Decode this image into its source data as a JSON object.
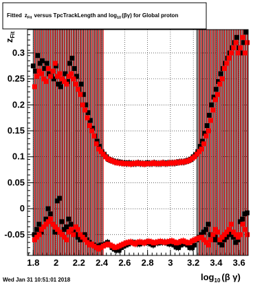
{
  "title": {
    "prefix": "Fitted",
    "z": "z",
    "z_sub": "Fit",
    "middle": "versus TpcTrackLength and log",
    "log_sub": "10",
    "suffix": "(βγ) for Global proton"
  },
  "footer": "Wed Jan 31 10:51:01 2018",
  "y_axis_title": {
    "main": "z",
    "sub": "Fit"
  },
  "x_axis_title": {
    "main": "log",
    "sub": "10",
    "rest": "(β γ)"
  },
  "colors": {
    "series_black": "#000000",
    "series_red": "#ff0000",
    "frame": "#000000",
    "background": "#ffffff"
  },
  "chart_data": {
    "type": "scatter",
    "xlim": [
      1.75,
      3.68
    ],
    "ylim": [
      -0.09,
      0.345
    ],
    "grid": true,
    "legend": "none",
    "x_ticks": [
      "1.8",
      "2",
      "2.2",
      "2.4",
      "2.6",
      "2.8",
      "3",
      "3.2",
      "3.4",
      "3.6"
    ],
    "y_ticks": [
      "-0.05",
      "0",
      "0.05",
      "0.1",
      "0.15",
      "0.2",
      "0.25",
      "0.3"
    ],
    "series": [
      {
        "color": "#000000",
        "x": [
          1.8,
          1.82,
          1.84,
          1.86,
          1.88,
          1.9,
          1.92,
          1.94,
          1.96,
          1.98,
          2.0,
          2.02,
          2.04,
          2.06,
          2.08,
          2.1,
          2.12,
          2.14,
          2.16,
          2.18,
          2.2,
          2.22,
          2.24,
          2.26,
          2.28,
          2.3,
          2.32,
          2.34,
          2.36,
          2.38,
          2.4,
          2.42,
          2.44,
          2.46,
          2.48,
          2.5,
          2.52,
          2.54,
          2.56,
          2.58,
          2.6,
          2.62,
          2.64,
          2.66,
          2.68,
          2.7,
          2.72,
          2.74,
          2.76,
          2.78,
          2.8,
          2.82,
          2.84,
          2.86,
          2.88,
          2.9,
          2.92,
          2.94,
          2.96,
          2.98,
          3.0,
          3.02,
          3.04,
          3.06,
          3.08,
          3.1,
          3.12,
          3.14,
          3.16,
          3.18,
          3.2,
          3.22,
          3.24,
          3.26,
          3.28,
          3.3,
          3.32,
          3.34,
          3.36,
          3.38,
          3.4,
          3.42,
          3.44,
          3.46,
          3.48,
          3.5,
          3.52,
          3.54,
          3.56,
          3.58,
          3.6,
          3.62,
          3.64,
          3.66
        ],
        "y": [
          0.275,
          0.265,
          0.295,
          0.28,
          0.285,
          0.27,
          0.28,
          0.26,
          0.255,
          0.25,
          0.275,
          0.24,
          0.235,
          0.245,
          0.26,
          0.245,
          0.28,
          0.29,
          0.27,
          0.255,
          0.23,
          0.24,
          0.22,
          0.2,
          0.185,
          0.17,
          0.155,
          0.14,
          0.13,
          0.12,
          0.11,
          0.105,
          0.1,
          0.095,
          0.093,
          0.092,
          0.09,
          0.09,
          0.089,
          0.088,
          0.088,
          0.087,
          0.088,
          0.087,
          0.087,
          0.087,
          0.088,
          0.087,
          0.087,
          0.087,
          0.088,
          0.087,
          0.087,
          0.088,
          0.087,
          0.087,
          0.087,
          0.088,
          0.087,
          0.088,
          0.088,
          0.088,
          0.088,
          0.089,
          0.09,
          0.09,
          0.09,
          0.092,
          0.093,
          0.095,
          0.1,
          0.104,
          0.11,
          0.12,
          0.13,
          0.145,
          0.16,
          0.18,
          0.2,
          0.215,
          0.23,
          0.245,
          0.26,
          0.27,
          0.28,
          0.29,
          0.3,
          0.31,
          0.32,
          0.33,
          0.31,
          0.3,
          0.32,
          0.34
        ]
      },
      {
        "color": "#ff0000",
        "x": [
          1.8,
          1.82,
          1.84,
          1.86,
          1.88,
          1.9,
          1.92,
          1.94,
          1.96,
          1.98,
          2.0,
          2.02,
          2.04,
          2.06,
          2.08,
          2.1,
          2.12,
          2.14,
          2.16,
          2.18,
          2.2,
          2.22,
          2.24,
          2.26,
          2.28,
          2.3,
          2.32,
          2.34,
          2.36,
          2.38,
          2.4,
          2.42,
          2.44,
          2.46,
          2.48,
          2.5,
          2.52,
          2.54,
          2.56,
          2.58,
          2.6,
          2.62,
          2.64,
          2.66,
          2.68,
          2.7,
          2.72,
          2.74,
          2.76,
          2.78,
          2.8,
          2.82,
          2.84,
          2.86,
          2.88,
          2.9,
          2.92,
          2.94,
          2.96,
          2.98,
          3.0,
          3.02,
          3.04,
          3.06,
          3.08,
          3.1,
          3.12,
          3.14,
          3.16,
          3.18,
          3.2,
          3.22,
          3.24,
          3.26,
          3.28,
          3.3,
          3.32,
          3.34,
          3.36,
          3.38,
          3.4,
          3.42,
          3.44,
          3.46,
          3.48,
          3.5,
          3.52,
          3.54,
          3.56,
          3.58,
          3.6,
          3.62,
          3.64,
          3.66
        ],
        "y": [
          0.235,
          0.255,
          0.265,
          0.26,
          0.25,
          0.245,
          0.27,
          0.255,
          0.265,
          0.28,
          0.255,
          0.26,
          0.25,
          0.245,
          0.24,
          0.255,
          0.26,
          0.25,
          0.24,
          0.23,
          0.22,
          0.2,
          0.19,
          0.175,
          0.16,
          0.15,
          0.14,
          0.125,
          0.115,
          0.11,
          0.105,
          0.1,
          0.096,
          0.094,
          0.092,
          0.09,
          0.089,
          0.088,
          0.088,
          0.087,
          0.087,
          0.087,
          0.086,
          0.087,
          0.087,
          0.088,
          0.087,
          0.087,
          0.086,
          0.087,
          0.087,
          0.087,
          0.088,
          0.087,
          0.087,
          0.087,
          0.088,
          0.087,
          0.087,
          0.088,
          0.088,
          0.088,
          0.089,
          0.089,
          0.09,
          0.09,
          0.091,
          0.092,
          0.094,
          0.097,
          0.1,
          0.105,
          0.11,
          0.115,
          0.125,
          0.14,
          0.15,
          0.17,
          0.19,
          0.21,
          0.22,
          0.24,
          0.25,
          0.27,
          0.28,
          0.29,
          0.3,
          0.31,
          0.32,
          0.3,
          0.31,
          0.33,
          0.3,
          0.32
        ]
      },
      {
        "color": "#000000",
        "x": [
          1.81,
          1.83,
          1.85,
          1.87,
          1.89,
          1.91,
          1.93,
          1.95,
          1.97,
          1.99,
          2.01,
          2.03,
          2.05,
          2.07,
          2.09,
          2.11,
          2.13,
          2.15,
          2.17,
          2.19,
          2.21,
          2.23,
          2.25,
          2.27,
          2.29,
          2.31,
          2.33,
          2.35,
          2.37,
          2.39,
          2.41,
          2.43,
          2.45,
          2.47,
          2.49,
          2.51,
          2.53,
          2.55,
          2.57,
          2.59,
          2.61,
          2.63,
          2.65,
          2.67,
          2.69,
          2.71,
          2.73,
          2.75,
          2.77,
          2.79,
          2.81,
          2.83,
          2.85,
          2.87,
          2.89,
          2.91,
          2.93,
          2.95,
          2.97,
          2.99,
          3.01,
          3.03,
          3.05,
          3.07,
          3.09,
          3.11,
          3.13,
          3.15,
          3.17,
          3.19,
          3.21,
          3.23,
          3.25,
          3.27,
          3.29,
          3.31,
          3.33,
          3.35,
          3.37,
          3.39,
          3.41,
          3.43,
          3.45,
          3.47,
          3.49,
          3.51,
          3.53,
          3.55,
          3.57,
          3.59,
          3.61,
          3.63,
          3.65,
          3.67
        ],
        "y": [
          -0.05,
          -0.04,
          -0.03,
          -0.045,
          -0.035,
          -0.02,
          0.0,
          -0.01,
          -0.03,
          -0.045,
          0.015,
          0.02,
          -0.025,
          -0.04,
          -0.035,
          -0.02,
          -0.03,
          -0.045,
          -0.05,
          -0.055,
          -0.06,
          -0.055,
          -0.05,
          -0.06,
          -0.065,
          -0.07,
          -0.07,
          -0.075,
          -0.072,
          -0.07,
          -0.07,
          -0.068,
          -0.065,
          -0.07,
          -0.075,
          -0.078,
          -0.08,
          -0.08,
          -0.075,
          -0.072,
          -0.07,
          -0.068,
          -0.066,
          -0.065,
          -0.066,
          -0.068,
          -0.068,
          -0.066,
          -0.066,
          -0.065,
          -0.066,
          -0.068,
          -0.07,
          -0.066,
          -0.066,
          -0.065,
          -0.065,
          -0.064,
          -0.066,
          -0.068,
          -0.066,
          -0.07,
          -0.074,
          -0.075,
          -0.07,
          -0.068,
          -0.066,
          -0.07,
          -0.075,
          -0.075,
          -0.07,
          -0.06,
          -0.055,
          -0.05,
          -0.045,
          -0.04,
          -0.03,
          -0.05,
          -0.06,
          -0.055,
          -0.06,
          -0.065,
          -0.07,
          -0.06,
          -0.055,
          -0.05,
          -0.045,
          -0.055,
          -0.065,
          -0.06,
          -0.025,
          -0.02,
          -0.01,
          -0.008
        ]
      },
      {
        "color": "#ff0000",
        "x": [
          1.8,
          1.82,
          1.84,
          1.86,
          1.88,
          1.9,
          1.92,
          1.94,
          1.96,
          1.98,
          2.0,
          2.02,
          2.04,
          2.06,
          2.08,
          2.1,
          2.12,
          2.14,
          2.16,
          2.18,
          2.2,
          2.22,
          2.24,
          2.26,
          2.28,
          2.3,
          2.32,
          2.34,
          2.36,
          2.38,
          2.4,
          2.42,
          2.44,
          2.46,
          2.48,
          2.5,
          2.52,
          2.54,
          2.56,
          2.58,
          2.6,
          2.62,
          2.64,
          2.66,
          2.68,
          2.7,
          2.72,
          2.74,
          2.76,
          2.78,
          2.8,
          2.82,
          2.84,
          2.86,
          2.88,
          2.9,
          2.92,
          2.94,
          2.96,
          2.98,
          3.0,
          3.02,
          3.04,
          3.06,
          3.08,
          3.1,
          3.12,
          3.14,
          3.16,
          3.18,
          3.2,
          3.22,
          3.24,
          3.26,
          3.28,
          3.3,
          3.32,
          3.34,
          3.36,
          3.38,
          3.4,
          3.42,
          3.44,
          3.46,
          3.48,
          3.5,
          3.52,
          3.54,
          3.56,
          3.58,
          3.6,
          3.62,
          3.64,
          3.66
        ],
        "y": [
          -0.06,
          -0.055,
          -0.05,
          -0.04,
          -0.035,
          -0.03,
          -0.025,
          -0.02,
          -0.03,
          -0.035,
          -0.04,
          -0.045,
          -0.05,
          -0.055,
          -0.06,
          -0.045,
          -0.04,
          -0.05,
          -0.035,
          -0.04,
          -0.05,
          -0.055,
          -0.06,
          -0.065,
          -0.07,
          -0.068,
          -0.072,
          -0.075,
          -0.078,
          -0.075,
          -0.072,
          -0.07,
          -0.068,
          -0.07,
          -0.072,
          -0.075,
          -0.074,
          -0.072,
          -0.07,
          -0.068,
          -0.066,
          -0.065,
          -0.064,
          -0.066,
          -0.068,
          -0.065,
          -0.064,
          -0.065,
          -0.066,
          -0.064,
          -0.063,
          -0.064,
          -0.066,
          -0.065,
          -0.064,
          -0.063,
          -0.064,
          -0.065,
          -0.064,
          -0.063,
          -0.062,
          -0.064,
          -0.066,
          -0.065,
          -0.063,
          -0.062,
          -0.064,
          -0.066,
          -0.065,
          -0.062,
          -0.06,
          -0.058,
          -0.056,
          -0.055,
          -0.06,
          -0.065,
          -0.07,
          -0.06,
          -0.05,
          -0.04,
          -0.045,
          -0.06,
          -0.055,
          -0.05,
          -0.045,
          -0.04,
          -0.03,
          -0.045,
          -0.05,
          -0.055,
          -0.05,
          -0.03,
          -0.04,
          -0.05
        ]
      }
    ]
  }
}
